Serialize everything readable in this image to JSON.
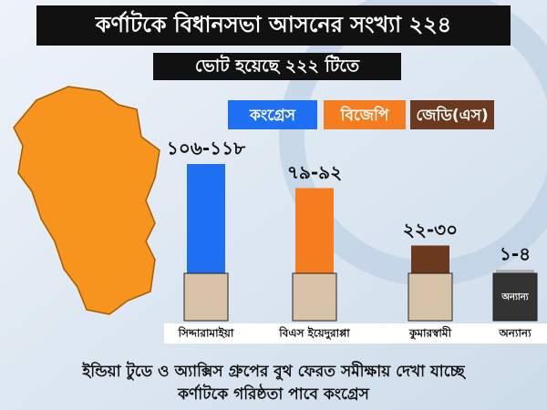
{
  "chart_data": {
    "type": "bar",
    "title": "কর্ণাটকে বিধানসভা আসনের সংখ্যা ২২৪",
    "subtitle": "ভোট হয়েছে ২২২ টিতে",
    "legend": [
      {
        "name": "কংগ্রেস",
        "color": "#1f6ff2"
      },
      {
        "name": "বিজেপি",
        "color": "#f57c1f"
      },
      {
        "name": "জেডি(এস)",
        "color": "#6b3a1e"
      }
    ],
    "categories": [
      "সিদ্দারামাইয়া",
      "বিএস ইয়েদুরাপ্পা",
      "কুমারস্বামী",
      "অন্যান্য"
    ],
    "colors": [
      "#1f6ff2",
      "#f57c1f",
      "#6b3a1e",
      "#b0b0b0"
    ],
    "values": [
      [
        106,
        118
      ],
      [
        79,
        92
      ],
      [
        22,
        30
      ],
      [
        1,
        4
      ]
    ],
    "value_labels": [
      "১০৬-১১৮",
      "৭৯-৯২",
      "২২-৩০",
      "১-৪"
    ],
    "footer": [
      "ইন্ডিয়া টুডে ও অ্যাক্সিস গ্রুপের  বুথ ফেরত সমীক্ষায় দেখা যাচ্ছে",
      "কর্ণাটকে গরিষ্ঠতা পাবে কংগ্রেস"
    ]
  }
}
